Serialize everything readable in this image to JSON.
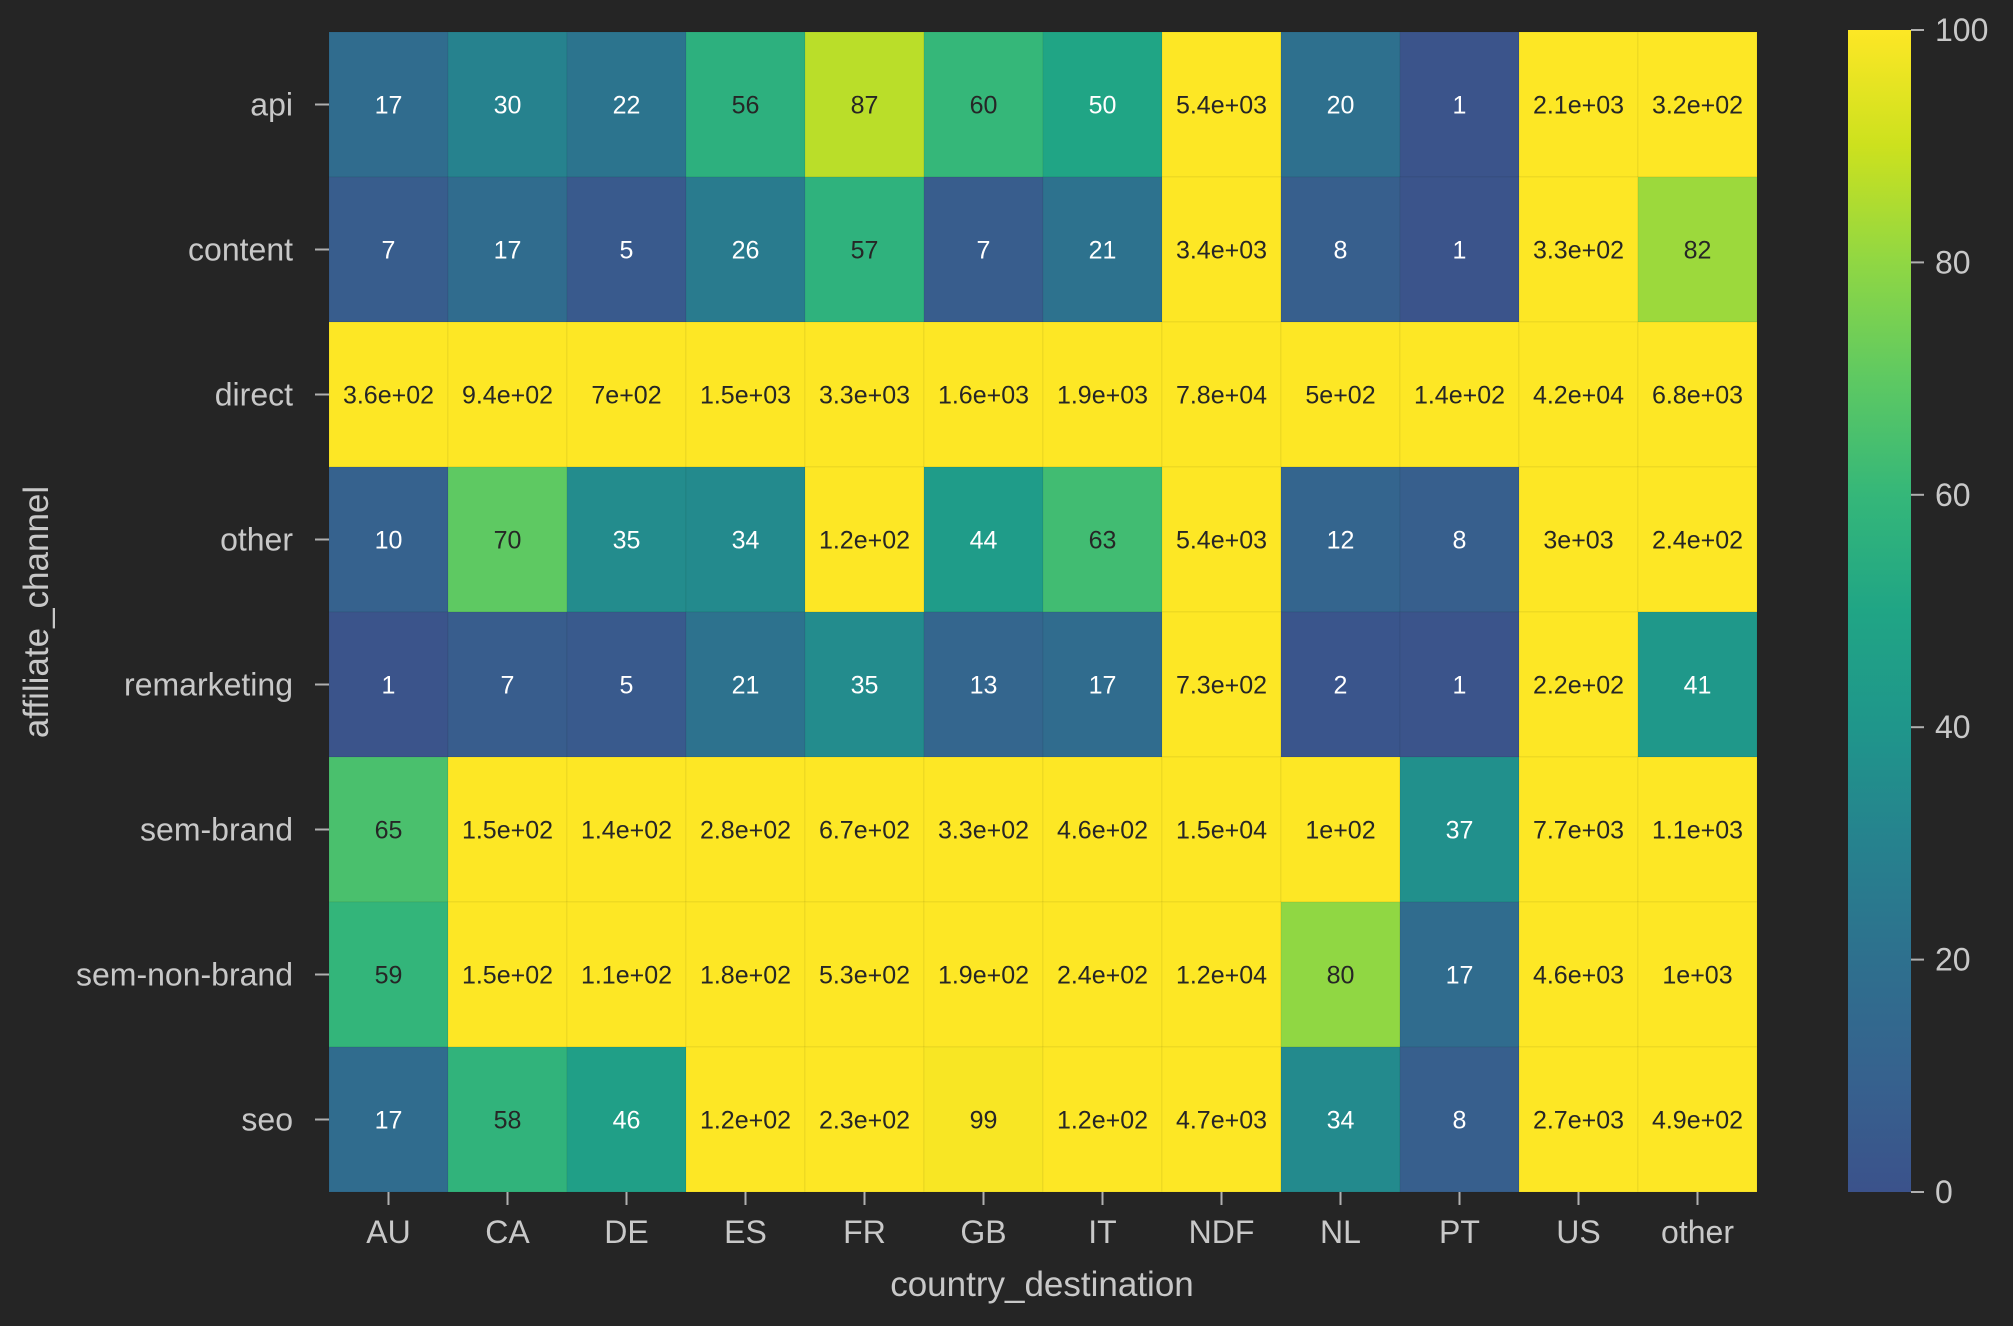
{
  "chart_data": {
    "type": "heatmap",
    "title": "",
    "xlabel": "country_destination",
    "ylabel": "affiliate_channel",
    "x_categories": [
      "AU",
      "CA",
      "DE",
      "ES",
      "FR",
      "GB",
      "IT",
      "NDF",
      "NL",
      "PT",
      "US",
      "other"
    ],
    "y_categories": [
      "api",
      "content",
      "direct",
      "other",
      "remarketing",
      "sem-brand",
      "sem-non-brand",
      "seo"
    ],
    "values": [
      [
        17,
        30,
        22,
        56,
        87,
        60,
        50,
        5400,
        20,
        1,
        2100,
        320
      ],
      [
        7,
        17,
        5,
        26,
        57,
        7,
        21,
        3400,
        8,
        1,
        330,
        82
      ],
      [
        360,
        940,
        700,
        1500,
        3300,
        1600,
        1900,
        78000,
        500,
        140,
        42000,
        6800
      ],
      [
        10,
        70,
        35,
        34,
        120,
        44,
        63,
        5400,
        12,
        8,
        3000,
        240
      ],
      [
        1,
        7,
        5,
        21,
        35,
        13,
        17,
        730,
        2,
        1,
        220,
        41
      ],
      [
        65,
        150,
        140,
        280,
        670,
        330,
        460,
        15000,
        100,
        37,
        7700,
        1100
      ],
      [
        59,
        150,
        110,
        180,
        530,
        190,
        240,
        12000,
        80,
        17,
        4600,
        1000
      ],
      [
        17,
        58,
        46,
        120,
        230,
        99,
        120,
        4700,
        34,
        8,
        2700,
        490
      ]
    ],
    "annotations": [
      [
        "17",
        "30",
        "22",
        "56",
        "87",
        "60",
        "50",
        "5.4e+03",
        "20",
        "1",
        "2.1e+03",
        "3.2e+02"
      ],
      [
        "7",
        "17",
        "5",
        "26",
        "57",
        "7",
        "21",
        "3.4e+03",
        "8",
        "1",
        "3.3e+02",
        "82"
      ],
      [
        "3.6e+02",
        "9.4e+02",
        "7e+02",
        "1.5e+03",
        "3.3e+03",
        "1.6e+03",
        "1.9e+03",
        "7.8e+04",
        "5e+02",
        "1.4e+02",
        "4.2e+04",
        "6.8e+03"
      ],
      [
        "10",
        "70",
        "35",
        "34",
        "1.2e+02",
        "44",
        "63",
        "5.4e+03",
        "12",
        "8",
        "3e+03",
        "2.4e+02"
      ],
      [
        "1",
        "7",
        "5",
        "21",
        "35",
        "13",
        "17",
        "7.3e+02",
        "2",
        "1",
        "2.2e+02",
        "41"
      ],
      [
        "65",
        "1.5e+02",
        "1.4e+02",
        "2.8e+02",
        "6.7e+02",
        "3.3e+02",
        "4.6e+02",
        "1.5e+04",
        "1e+02",
        "37",
        "7.7e+03",
        "1.1e+03"
      ],
      [
        "59",
        "1.5e+02",
        "1.1e+02",
        "1.8e+02",
        "5.3e+02",
        "1.9e+02",
        "2.4e+02",
        "1.2e+04",
        "80",
        "17",
        "4.6e+03",
        "1e+03"
      ],
      [
        "17",
        "58",
        "46",
        "1.2e+02",
        "2.3e+02",
        "99",
        "1.2e+02",
        "4.7e+03",
        "34",
        "8",
        "2.7e+03",
        "4.9e+02"
      ]
    ],
    "color_range": [
      0,
      100
    ],
    "colormap": "viridis",
    "colorbar_ticks": [
      "0",
      "20",
      "40",
      "60",
      "80",
      "100"
    ],
    "colorbar_tick_values": [
      0,
      20,
      40,
      60,
      80,
      100
    ],
    "colors": {
      "background": "#252525",
      "text": "#c8c8c8",
      "tick": "#b0b0b0"
    }
  }
}
